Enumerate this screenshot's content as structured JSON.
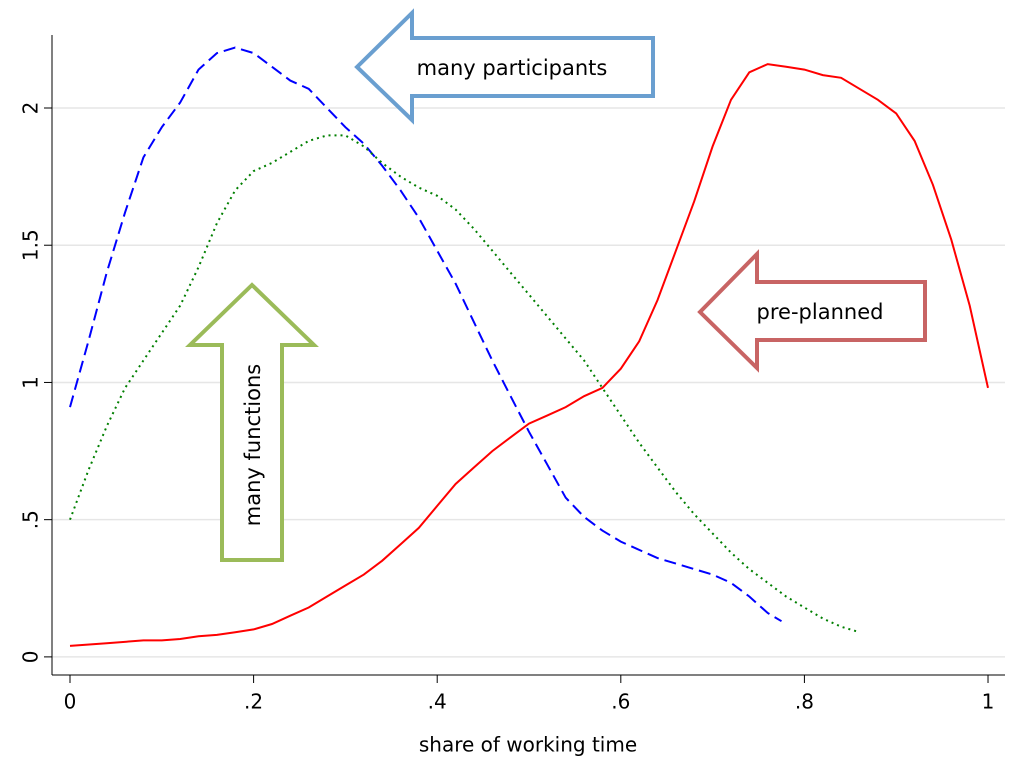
{
  "chart_data": {
    "type": "line",
    "xlabel": "share of working time",
    "xlim": [
      -0.0196,
      1.0185
    ],
    "ylim": [
      -0.066,
      2.266
    ],
    "xticks": [
      0,
      {
        "value": 0.2,
        "label": ".2"
      },
      {
        "value": 0.4,
        "label": ".4"
      },
      {
        "value": 0.6,
        "label": ".6"
      },
      {
        "value": 0.8,
        "label": ".8"
      },
      1
    ],
    "yticks": [
      0,
      {
        "value": 0.5,
        "label": ".5"
      },
      1,
      {
        "value": 1.5,
        "label": "1.5"
      },
      2
    ],
    "grid": true,
    "series": [
      {
        "color": "#0000ff",
        "dash": "dashed",
        "x": [
          0,
          0.02,
          0.04,
          0.06,
          0.08,
          0.1,
          0.12,
          0.14,
          0.16,
          0.18,
          0.2,
          0.22,
          0.24,
          0.26,
          0.28,
          0.3,
          0.32,
          0.34,
          0.36,
          0.38,
          0.4,
          0.42,
          0.44,
          0.46,
          0.48,
          0.5,
          0.52,
          0.54,
          0.56,
          0.58,
          0.6,
          0.62,
          0.64,
          0.66,
          0.68,
          0.7,
          0.72,
          0.74,
          0.76,
          0.775
        ],
        "values": [
          0.91,
          1.15,
          1.4,
          1.62,
          1.82,
          1.93,
          2.02,
          2.14,
          2.2,
          2.22,
          2.2,
          2.15,
          2.1,
          2.07,
          2.0,
          1.93,
          1.87,
          1.79,
          1.7,
          1.6,
          1.48,
          1.36,
          1.22,
          1.08,
          0.95,
          0.82,
          0.7,
          0.58,
          0.51,
          0.46,
          0.42,
          0.39,
          0.36,
          0.34,
          0.32,
          0.3,
          0.27,
          0.22,
          0.16,
          0.13
        ]
      },
      {
        "color": "#007f00",
        "dash": "dotted",
        "x": [
          0,
          0.02,
          0.04,
          0.06,
          0.08,
          0.1,
          0.12,
          0.14,
          0.16,
          0.18,
          0.2,
          0.22,
          0.24,
          0.26,
          0.28,
          0.3,
          0.32,
          0.34,
          0.36,
          0.38,
          0.4,
          0.42,
          0.44,
          0.46,
          0.48,
          0.5,
          0.52,
          0.54,
          0.56,
          0.58,
          0.6,
          0.62,
          0.64,
          0.66,
          0.68,
          0.7,
          0.72,
          0.74,
          0.76,
          0.78,
          0.8,
          0.82,
          0.84,
          0.86
        ],
        "values": [
          0.5,
          0.68,
          0.84,
          0.98,
          1.08,
          1.18,
          1.28,
          1.42,
          1.58,
          1.7,
          1.77,
          1.8,
          1.84,
          1.88,
          1.9,
          1.9,
          1.86,
          1.8,
          1.75,
          1.71,
          1.68,
          1.63,
          1.56,
          1.48,
          1.4,
          1.32,
          1.24,
          1.16,
          1.08,
          0.98,
          0.88,
          0.78,
          0.69,
          0.6,
          0.52,
          0.45,
          0.38,
          0.32,
          0.27,
          0.22,
          0.18,
          0.14,
          0.11,
          0.09
        ]
      },
      {
        "color": "#ff0000",
        "dash": "solid",
        "x": [
          0,
          0.04,
          0.08,
          0.1,
          0.12,
          0.14,
          0.16,
          0.18,
          0.2,
          0.22,
          0.24,
          0.26,
          0.28,
          0.3,
          0.32,
          0.34,
          0.36,
          0.38,
          0.4,
          0.42,
          0.44,
          0.46,
          0.48,
          0.5,
          0.52,
          0.54,
          0.56,
          0.58,
          0.6,
          0.62,
          0.64,
          0.66,
          0.68,
          0.7,
          0.72,
          0.74,
          0.76,
          0.78,
          0.8,
          0.82,
          0.84,
          0.86,
          0.88,
          0.9,
          0.92,
          0.94,
          0.96,
          0.98,
          1
        ],
        "values": [
          0.04,
          0.05,
          0.06,
          0.06,
          0.065,
          0.075,
          0.08,
          0.09,
          0.1,
          0.12,
          0.15,
          0.18,
          0.22,
          0.26,
          0.3,
          0.35,
          0.41,
          0.47,
          0.55,
          0.63,
          0.69,
          0.75,
          0.8,
          0.85,
          0.88,
          0.91,
          0.95,
          0.98,
          1.05,
          1.15,
          1.3,
          1.48,
          1.66,
          1.86,
          2.03,
          2.13,
          2.16,
          2.15,
          2.14,
          2.12,
          2.11,
          2.07,
          2.03,
          1.98,
          1.88,
          1.72,
          1.52,
          1.28,
          0.98
        ]
      }
    ],
    "annotations": [
      {
        "text": "many participants",
        "color": "#1f3d7a",
        "arrow_color": "#6a9fd0"
      },
      {
        "text": "pre-planned",
        "color": "#ff0000",
        "arrow_color": "#c86464"
      },
      {
        "text": "many functions",
        "color": "#4f6228",
        "arrow_color": "#9bbb59"
      }
    ]
  }
}
